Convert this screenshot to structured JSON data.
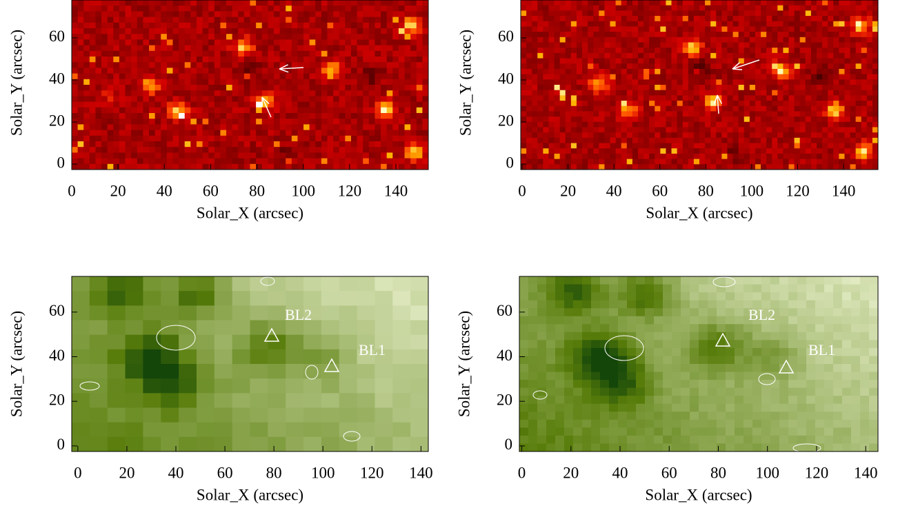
{
  "chart_data": [
    {
      "type": "image",
      "colormap": "red",
      "xlabel": "Solar_X (arcsec)",
      "ylabel": "Solar_Y (arcsec)",
      "xlim": [
        0,
        154
      ],
      "ylim": [
        -2.6,
        78
      ],
      "xticks": [
        0,
        20,
        40,
        60,
        80,
        100,
        120,
        140
      ],
      "yticks": [
        0,
        20,
        40,
        60
      ],
      "annotations": []
    },
    {
      "type": "image",
      "colormap": "red",
      "xlabel": "Solar_X (arcsec)",
      "ylabel": "Solar_Y (arcsec)",
      "xlim": [
        -0.6,
        155
      ],
      "ylim": [
        -2.6,
        78
      ],
      "xticks": [
        0,
        20,
        40,
        60,
        80,
        100,
        120,
        140
      ],
      "yticks": [
        0,
        20,
        40,
        60
      ],
      "annotations": []
    },
    {
      "type": "image",
      "colormap": "green",
      "xlabel": "Solar_X (arcsec)",
      "ylabel": "Solar_Y (arcsec)",
      "xlim": [
        -2.5,
        143
      ],
      "ylim": [
        -2.5,
        76
      ],
      "xticks": [
        0,
        20,
        40,
        60,
        80,
        100,
        120,
        140
      ],
      "yticks": [
        0,
        20,
        40,
        60
      ],
      "annotations": [
        "BL2",
        "BL1"
      ]
    },
    {
      "type": "image",
      "colormap": "green",
      "xlabel": "Solar_X (arcsec)",
      "ylabel": "Solar_Y (arcsec)",
      "xlim": [
        -1,
        145
      ],
      "ylim": [
        -2.5,
        76
      ],
      "xticks": [
        0,
        20,
        40,
        60,
        80,
        100,
        120,
        140
      ],
      "yticks": [
        0,
        20,
        40,
        60
      ],
      "annotations": [
        "BL2",
        "BL1"
      ]
    }
  ]
}
